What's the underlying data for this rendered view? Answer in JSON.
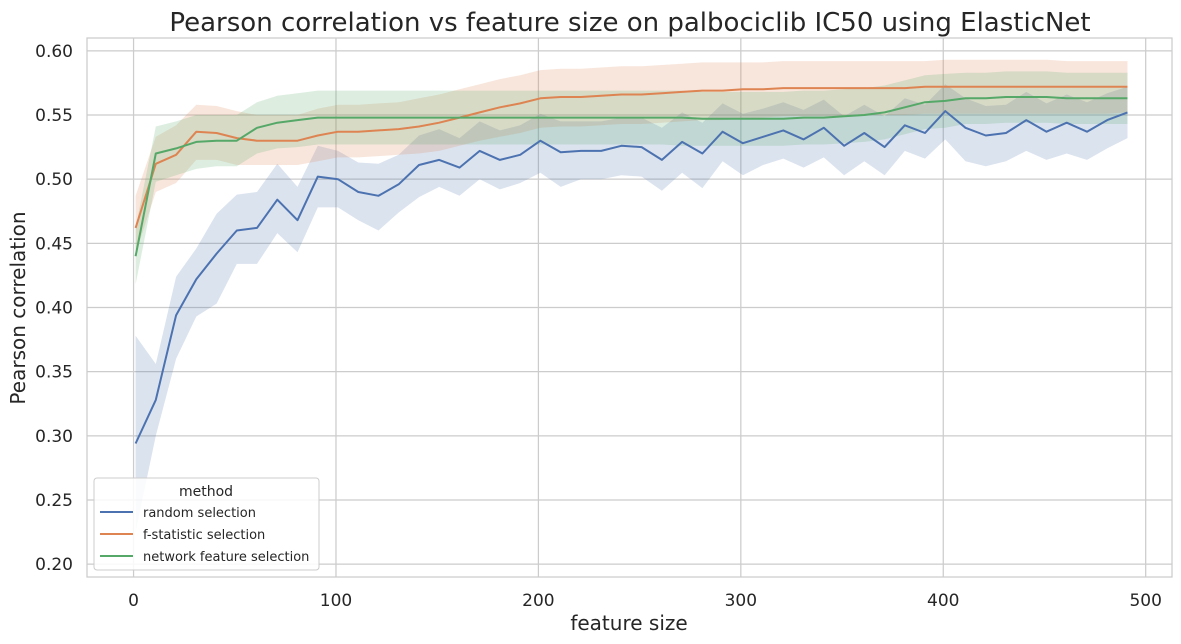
{
  "chart_data": {
    "type": "line",
    "title": "Pearson correlation vs feature size on palbociclib IC50 using ElasticNet",
    "xlabel": "feature size",
    "ylabel": "Pearson correlation",
    "xlim": [
      -23,
      513
    ],
    "ylim": [
      0.19,
      0.61
    ],
    "xticks": [
      0,
      100,
      200,
      300,
      400,
      500
    ],
    "yticks": [
      0.2,
      0.25,
      0.3,
      0.35,
      0.4,
      0.45,
      0.5,
      0.55,
      0.6
    ],
    "xtick_labels": [
      "0",
      "100",
      "200",
      "300",
      "400",
      "500"
    ],
    "ytick_labels": [
      "0.20",
      "0.25",
      "0.30",
      "0.35",
      "0.40",
      "0.45",
      "0.50",
      "0.55",
      "0.60"
    ],
    "grid": true,
    "legend": {
      "title": "method",
      "placement": "lower-left"
    },
    "x": [
      1,
      11,
      21,
      31,
      41,
      51,
      61,
      71,
      81,
      91,
      101,
      111,
      121,
      131,
      141,
      151,
      161,
      171,
      181,
      191,
      201,
      211,
      221,
      231,
      241,
      251,
      261,
      271,
      281,
      291,
      301,
      311,
      321,
      331,
      341,
      351,
      361,
      371,
      381,
      391,
      401,
      411,
      421,
      431,
      441,
      451,
      461,
      471,
      481,
      491
    ],
    "series": [
      {
        "name": "random selection",
        "color": "#4c72b0",
        "values": [
          0.294,
          0.328,
          0.394,
          0.422,
          0.442,
          0.46,
          0.462,
          0.484,
          0.468,
          0.502,
          0.5,
          0.49,
          0.487,
          0.496,
          0.511,
          0.515,
          0.509,
          0.522,
          0.515,
          0.519,
          0.53,
          0.521,
          0.522,
          0.522,
          0.526,
          0.525,
          0.515,
          0.529,
          0.52,
          0.537,
          0.528,
          0.533,
          0.538,
          0.531,
          0.54,
          0.526,
          0.536,
          0.525,
          0.542,
          0.536,
          0.553,
          0.54,
          0.534,
          0.536,
          0.546,
          0.537,
          0.544,
          0.537,
          0.546,
          0.552
        ],
        "lower": [
          0.225,
          0.3,
          0.36,
          0.393,
          0.403,
          0.434,
          0.434,
          0.458,
          0.443,
          0.478,
          0.478,
          0.468,
          0.46,
          0.474,
          0.486,
          0.494,
          0.487,
          0.5,
          0.492,
          0.497,
          0.505,
          0.494,
          0.5,
          0.5,
          0.503,
          0.502,
          0.491,
          0.505,
          0.493,
          0.514,
          0.503,
          0.511,
          0.516,
          0.509,
          0.517,
          0.503,
          0.514,
          0.503,
          0.522,
          0.516,
          0.531,
          0.514,
          0.51,
          0.514,
          0.522,
          0.515,
          0.52,
          0.515,
          0.524,
          0.532
        ],
        "upper": [
          0.378,
          0.356,
          0.424,
          0.446,
          0.473,
          0.488,
          0.49,
          0.512,
          0.494,
          0.526,
          0.522,
          0.513,
          0.512,
          0.519,
          0.534,
          0.539,
          0.532,
          0.545,
          0.538,
          0.542,
          0.551,
          0.545,
          0.545,
          0.545,
          0.548,
          0.548,
          0.54,
          0.552,
          0.544,
          0.559,
          0.551,
          0.555,
          0.56,
          0.554,
          0.562,
          0.549,
          0.558,
          0.549,
          0.563,
          0.558,
          0.574,
          0.563,
          0.557,
          0.558,
          0.568,
          0.559,
          0.566,
          0.56,
          0.567,
          0.572
        ]
      },
      {
        "name": "f-statistic selection",
        "color": "#dd8452",
        "values": [
          0.462,
          0.512,
          0.519,
          0.537,
          0.536,
          0.532,
          0.53,
          0.53,
          0.53,
          0.534,
          0.537,
          0.537,
          0.538,
          0.539,
          0.541,
          0.544,
          0.548,
          0.552,
          0.556,
          0.559,
          0.563,
          0.564,
          0.564,
          0.565,
          0.566,
          0.566,
          0.567,
          0.568,
          0.569,
          0.569,
          0.57,
          0.57,
          0.571,
          0.571,
          0.571,
          0.571,
          0.571,
          0.571,
          0.571,
          0.572,
          0.572,
          0.572,
          0.572,
          0.572,
          0.572,
          0.572,
          0.572,
          0.572,
          0.572,
          0.572
        ],
        "lower": [
          0.442,
          0.49,
          0.497,
          0.515,
          0.515,
          0.511,
          0.511,
          0.511,
          0.511,
          0.514,
          0.517,
          0.517,
          0.518,
          0.519,
          0.52,
          0.522,
          0.526,
          0.53,
          0.533,
          0.536,
          0.54,
          0.541,
          0.541,
          0.542,
          0.543,
          0.543,
          0.544,
          0.545,
          0.546,
          0.546,
          0.547,
          0.548,
          0.549,
          0.549,
          0.549,
          0.549,
          0.55,
          0.55,
          0.55,
          0.551,
          0.551,
          0.551,
          0.551,
          0.551,
          0.551,
          0.551,
          0.551,
          0.551,
          0.551,
          0.552
        ],
        "upper": [
          0.487,
          0.533,
          0.542,
          0.558,
          0.557,
          0.553,
          0.55,
          0.55,
          0.55,
          0.555,
          0.558,
          0.558,
          0.559,
          0.56,
          0.563,
          0.566,
          0.57,
          0.574,
          0.578,
          0.581,
          0.585,
          0.586,
          0.586,
          0.587,
          0.588,
          0.588,
          0.589,
          0.59,
          0.591,
          0.591,
          0.591,
          0.591,
          0.592,
          0.592,
          0.592,
          0.592,
          0.592,
          0.592,
          0.592,
          0.592,
          0.593,
          0.593,
          0.593,
          0.593,
          0.593,
          0.593,
          0.592,
          0.592,
          0.592,
          0.592
        ]
      },
      {
        "name": "network feature selection",
        "color": "#55a868",
        "values": [
          0.44,
          0.52,
          0.524,
          0.529,
          0.53,
          0.53,
          0.54,
          0.544,
          0.546,
          0.548,
          0.548,
          0.548,
          0.548,
          0.548,
          0.548,
          0.548,
          0.548,
          0.548,
          0.548,
          0.548,
          0.548,
          0.548,
          0.548,
          0.548,
          0.548,
          0.548,
          0.548,
          0.548,
          0.547,
          0.547,
          0.547,
          0.547,
          0.547,
          0.548,
          0.548,
          0.549,
          0.55,
          0.552,
          0.556,
          0.56,
          0.561,
          0.563,
          0.563,
          0.564,
          0.564,
          0.564,
          0.563,
          0.563,
          0.563,
          0.563
        ],
        "lower": [
          0.418,
          0.498,
          0.503,
          0.508,
          0.51,
          0.51,
          0.52,
          0.524,
          0.525,
          0.527,
          0.527,
          0.527,
          0.527,
          0.527,
          0.527,
          0.527,
          0.527,
          0.527,
          0.527,
          0.527,
          0.527,
          0.527,
          0.527,
          0.527,
          0.527,
          0.527,
          0.527,
          0.526,
          0.526,
          0.526,
          0.526,
          0.526,
          0.526,
          0.527,
          0.527,
          0.528,
          0.529,
          0.531,
          0.535,
          0.539,
          0.54,
          0.543,
          0.543,
          0.544,
          0.544,
          0.544,
          0.543,
          0.543,
          0.543,
          0.543
        ],
        "upper": [
          0.462,
          0.541,
          0.545,
          0.55,
          0.55,
          0.55,
          0.56,
          0.565,
          0.567,
          0.569,
          0.569,
          0.569,
          0.569,
          0.569,
          0.569,
          0.569,
          0.569,
          0.569,
          0.569,
          0.569,
          0.569,
          0.569,
          0.569,
          0.569,
          0.569,
          0.569,
          0.569,
          0.569,
          0.568,
          0.568,
          0.568,
          0.568,
          0.568,
          0.569,
          0.569,
          0.57,
          0.571,
          0.573,
          0.577,
          0.581,
          0.582,
          0.583,
          0.583,
          0.584,
          0.584,
          0.584,
          0.583,
          0.583,
          0.583,
          0.583
        ]
      }
    ]
  }
}
